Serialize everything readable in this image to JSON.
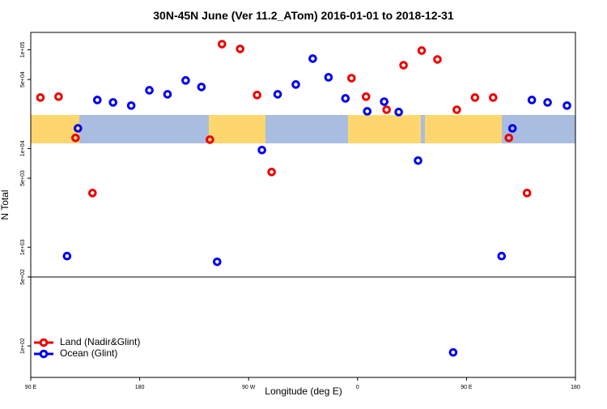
{
  "chart_data": {
    "type": "scatter",
    "title": "30N-45N June (Ver 11.2_ATom)   2016-01-01 to 2018-12-31",
    "x_label": "Longitude (deg E)",
    "y_label": "N Total",
    "log_y": true,
    "legend": "bottom-left",
    "hline": 500,
    "xlim": [
      90,
      540
    ],
    "ylim": [
      48,
      150000
    ],
    "xticks": [
      {
        "value": 90,
        "label": "90 E"
      },
      180,
      {
        "value": 270,
        "label": "90 W"
      },
      {
        "value": 360,
        "label": "0"
      },
      {
        "value": 450,
        "label": "90 E"
      },
      {
        "value": 540,
        "label": "180"
      }
    ],
    "yticks": [
      {
        "value": 100,
        "label": "1e+02"
      },
      {
        "value": 500,
        "label": "5e+02"
      },
      {
        "value": 1000,
        "label": "1e+03"
      },
      {
        "value": 5000,
        "label": "5e+03"
      },
      {
        "value": 10000,
        "label": "1e+04"
      },
      {
        "value": 50000,
        "label": "5e+04"
      },
      {
        "value": 100000,
        "label": "1e+05"
      }
    ],
    "series": [
      {
        "name": "Land (Nadir&Glint)",
        "color": "#ee0000",
        "x": [
          98,
          113,
          127,
          141,
          238,
          248,
          263,
          277,
          289,
          355,
          367,
          384,
          398,
          413,
          426,
          442,
          457,
          472,
          485,
          500
        ],
        "values": [
          32800,
          33500,
          12800,
          3540,
          12300,
          114000,
          102000,
          34800,
          5780,
          51600,
          33500,
          24700,
          69800,
          98100,
          79800,
          24700,
          32800,
          32800,
          12800,
          3540
        ]
      },
      {
        "name": "Ocean (Glint)",
        "color": "#0000ee",
        "x": [
          120,
          129,
          145,
          158,
          173,
          188,
          203,
          218,
          231,
          244,
          281,
          294,
          309,
          323,
          336,
          350,
          368,
          382,
          394,
          410,
          439,
          479,
          488,
          504,
          517,
          533
        ],
        "values": [
          813,
          16000,
          31000,
          29300,
          27200,
          38900,
          35400,
          48900,
          42000,
          711,
          9640,
          35400,
          44500,
          81300,
          52600,
          32200,
          23800,
          29800,
          23400,
          7540,
          86,
          813,
          16000,
          31000,
          29300,
          27200
        ]
      }
    ]
  }
}
